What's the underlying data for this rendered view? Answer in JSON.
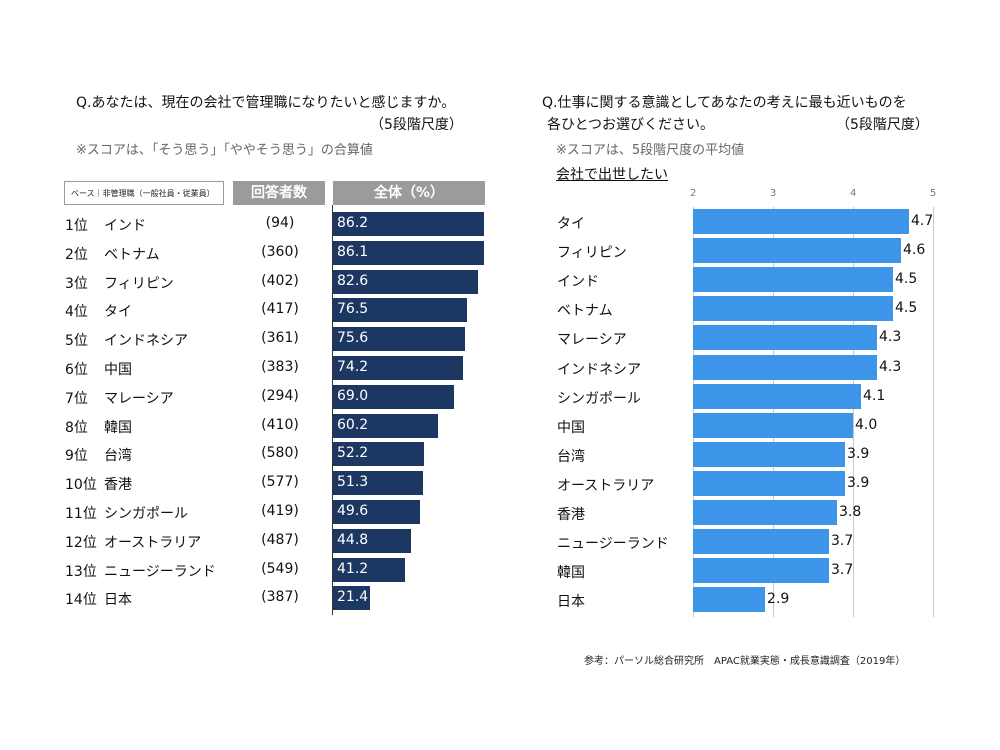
{
  "left": {
    "question": "Q.あなたは、現在の会社で管理職になりたいと感じますか。",
    "scale": "（5段階尺度）",
    "note": "※スコアは、「そう思う」「ややそう思う」の合算値",
    "base_label": "ベース｜非管理職（一般社員・従業員）",
    "col_count": "回答者数",
    "col_total": "全体（%）"
  },
  "right": {
    "question_line1": "Q.仕事に関する意識としてあなたの考えに最も近いものを",
    "question_line2": "各ひとつお選びください。",
    "scale": "（5段階尺度）",
    "note": "※スコアは、5段階尺度の平均値",
    "subtitle": "会社で出世したい"
  },
  "source": "参考：パーソル総合研究所　APAC就業実態・成長意識調査（2019年）",
  "chart_data": [
    {
      "type": "bar",
      "orientation": "horizontal",
      "ranks": [
        "1位",
        "2位",
        "3位",
        "4位",
        "5位",
        "6位",
        "7位",
        "8位",
        "9位",
        "10位",
        "11位",
        "12位",
        "13位",
        "14位"
      ],
      "categories": [
        "インド",
        "ベトナム",
        "フィリピン",
        "タイ",
        "インドネシア",
        "中国",
        "マレーシア",
        "韓国",
        "台湾",
        "香港",
        "シンガポール",
        "オーストラリア",
        "ニュージーランド",
        "日本"
      ],
      "respondents": [
        "(94)",
        "(360)",
        "(402)",
        "(417)",
        "(361)",
        "(383)",
        "(294)",
        "(410)",
        "(580)",
        "(577)",
        "(419)",
        "(487)",
        "(549)",
        "(387)"
      ],
      "values": [
        86.2,
        86.1,
        82.6,
        76.5,
        75.6,
        74.2,
        69.0,
        60.2,
        52.2,
        51.3,
        49.6,
        44.8,
        41.2,
        21.4
      ],
      "value_labels": [
        "86.2",
        "86.1",
        "82.6",
        "76.5",
        "75.6",
        "74.2",
        "69.0",
        "60.2",
        "52.2",
        "51.3",
        "49.6",
        "44.8",
        "41.2",
        "21.4"
      ],
      "xlim": [
        0,
        86.2
      ],
      "color": "#1d3763"
    },
    {
      "type": "bar",
      "orientation": "horizontal",
      "categories": [
        "タイ",
        "フィリピン",
        "インド",
        "ベトナム",
        "マレーシア",
        "インドネシア",
        "シンガポール",
        "中国",
        "台湾",
        "オーストラリア",
        "香港",
        "ニュージーランド",
        "韓国",
        "日本"
      ],
      "values": [
        4.7,
        4.6,
        4.5,
        4.5,
        4.3,
        4.3,
        4.1,
        4.0,
        3.9,
        3.9,
        3.8,
        3.7,
        3.7,
        2.9
      ],
      "value_labels": [
        "4.7",
        "4.6",
        "4.5",
        "4.5",
        "4.3",
        "4.3",
        "4.1",
        "4.0",
        "3.9",
        "3.9",
        "3.8",
        "3.7",
        "3.7",
        "2.9"
      ],
      "xlim": [
        2,
        5
      ],
      "ticks": [
        "2",
        "3",
        "4",
        "5"
      ],
      "grid": true,
      "color": "#3d95ea"
    }
  ]
}
